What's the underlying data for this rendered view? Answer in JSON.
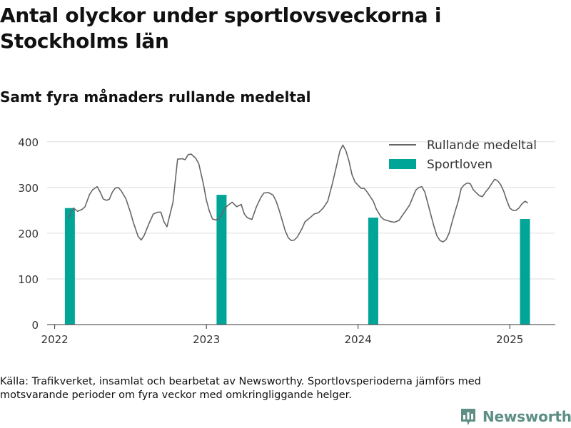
{
  "header": {
    "title": "Antal olyckor under sportlovsveckorna i Stockholms län",
    "subtitle": "Samt fyra månaders rullande medeltal"
  },
  "footer": {
    "source": "Källa: Trafikverket, insamlat och bearbetat av Newsworthy. Sportlovsperioderna jämförs med motsvarande perioder om fyra veckor med omkringliggande helger.",
    "brand": "Newsworthy"
  },
  "chart_data": {
    "type": "bar+line",
    "title": "Antal olyckor under sportlovsveckorna i Stockholms län",
    "subtitle": "Samt fyra månaders rullande medeltal",
    "xlabel": "",
    "ylabel": "",
    "xlim": [
      2021.95,
      2025.3
    ],
    "ylim": [
      0,
      420
    ],
    "x_ticks": [
      2022,
      2023,
      2024,
      2025
    ],
    "x_tick_labels": [
      "2022",
      "2023",
      "2024",
      "2025"
    ],
    "y_ticks": [
      0,
      100,
      200,
      300,
      400
    ],
    "y_tick_labels": [
      "0",
      "100",
      "200",
      "300",
      "400"
    ],
    "grid": "horizontal",
    "legend": {
      "position": "top-right",
      "entries": [
        {
          "name": "Rullande medeltal",
          "type": "line",
          "color": "#666666"
        },
        {
          "name": "Sportloven",
          "type": "bar",
          "color": "#00a598"
        }
      ]
    },
    "series": [
      {
        "name": "Sportloven",
        "type": "bar",
        "color": "#00a598",
        "x": [
          2022.1,
          2023.1,
          2024.1,
          2025.1
        ],
        "values": [
          255,
          284,
          234,
          231
        ]
      },
      {
        "name": "Rullande medeltal",
        "type": "line",
        "color": "#666666",
        "points": [
          [
            2022.09,
            232
          ],
          [
            2022.11,
            248
          ],
          [
            2022.125,
            255
          ],
          [
            2022.15,
            248
          ],
          [
            2022.18,
            252
          ],
          [
            2022.2,
            258
          ],
          [
            2022.23,
            285
          ],
          [
            2022.25,
            295
          ],
          [
            2022.28,
            302
          ],
          [
            2022.3,
            290
          ],
          [
            2022.32,
            275
          ],
          [
            2022.34,
            272
          ],
          [
            2022.36,
            274
          ],
          [
            2022.38,
            290
          ],
          [
            2022.4,
            299
          ],
          [
            2022.42,
            300
          ],
          [
            2022.44,
            292
          ],
          [
            2022.47,
            275
          ],
          [
            2022.5,
            245
          ],
          [
            2022.52,
            222
          ],
          [
            2022.55,
            193
          ],
          [
            2022.57,
            185
          ],
          [
            2022.59,
            195
          ],
          [
            2022.62,
            220
          ],
          [
            2022.65,
            242
          ],
          [
            2022.68,
            246
          ],
          [
            2022.7,
            246
          ],
          [
            2022.72,
            225
          ],
          [
            2022.74,
            214
          ],
          [
            2022.78,
            268
          ],
          [
            2022.81,
            362
          ],
          [
            2022.84,
            363
          ],
          [
            2022.86,
            361
          ],
          [
            2022.88,
            372
          ],
          [
            2022.9,
            373
          ],
          [
            2022.93,
            364
          ],
          [
            2022.95,
            352
          ],
          [
            2022.98,
            308
          ],
          [
            2023.0,
            272
          ],
          [
            2023.02,
            248
          ],
          [
            2023.04,
            231
          ],
          [
            2023.06,
            229
          ],
          [
            2023.08,
            231
          ],
          [
            2023.1,
            240
          ],
          [
            2023.12,
            255
          ],
          [
            2023.15,
            263
          ],
          [
            2023.17,
            268
          ],
          [
            2023.2,
            258
          ],
          [
            2023.23,
            263
          ],
          [
            2023.25,
            242
          ],
          [
            2023.27,
            234
          ],
          [
            2023.3,
            230
          ],
          [
            2023.33,
            258
          ],
          [
            2023.36,
            279
          ],
          [
            2023.38,
            288
          ],
          [
            2023.41,
            289
          ],
          [
            2023.44,
            283
          ],
          [
            2023.46,
            270
          ],
          [
            2023.48,
            250
          ],
          [
            2023.5,
            228
          ],
          [
            2023.52,
            205
          ],
          [
            2023.54,
            190
          ],
          [
            2023.56,
            184
          ],
          [
            2023.58,
            185
          ],
          [
            2023.6,
            192
          ],
          [
            2023.63,
            210
          ],
          [
            2023.65,
            225
          ],
          [
            2023.68,
            233
          ],
          [
            2023.71,
            242
          ],
          [
            2023.74,
            245
          ],
          [
            2023.77,
            255
          ],
          [
            2023.8,
            270
          ],
          [
            2023.83,
            308
          ],
          [
            2023.86,
            350
          ],
          [
            2023.88,
            380
          ],
          [
            2023.9,
            393
          ],
          [
            2023.92,
            380
          ],
          [
            2023.94,
            358
          ],
          [
            2023.96,
            328
          ],
          [
            2023.98,
            312
          ],
          [
            2024.0,
            305
          ],
          [
            2024.02,
            298
          ],
          [
            2024.04,
            298
          ],
          [
            2024.06,
            290
          ],
          [
            2024.08,
            280
          ],
          [
            2024.1,
            270
          ],
          [
            2024.12,
            253
          ],
          [
            2024.15,
            236
          ],
          [
            2024.17,
            230
          ],
          [
            2024.2,
            227
          ],
          [
            2024.22,
            225
          ],
          [
            2024.24,
            224
          ],
          [
            2024.27,
            228
          ],
          [
            2024.29,
            238
          ],
          [
            2024.32,
            252
          ],
          [
            2024.34,
            262
          ],
          [
            2024.36,
            278
          ],
          [
            2024.38,
            294
          ],
          [
            2024.4,
            300
          ],
          [
            2024.42,
            302
          ],
          [
            2024.44,
            290
          ],
          [
            2024.46,
            265
          ],
          [
            2024.48,
            240
          ],
          [
            2024.5,
            215
          ],
          [
            2024.52,
            194
          ],
          [
            2024.54,
            184
          ],
          [
            2024.56,
            181
          ],
          [
            2024.58,
            186
          ],
          [
            2024.6,
            200
          ],
          [
            2024.62,
            225
          ],
          [
            2024.64,
            248
          ],
          [
            2024.66,
            270
          ],
          [
            2024.68,
            298
          ],
          [
            2024.7,
            306
          ],
          [
            2024.72,
            310
          ],
          [
            2024.74,
            308
          ],
          [
            2024.76,
            295
          ],
          [
            2024.78,
            288
          ],
          [
            2024.8,
            282
          ],
          [
            2024.82,
            280
          ],
          [
            2024.84,
            290
          ],
          [
            2024.86,
            298
          ],
          [
            2024.88,
            308
          ],
          [
            2024.9,
            318
          ],
          [
            2024.92,
            315
          ],
          [
            2024.94,
            306
          ],
          [
            2024.96,
            292
          ],
          [
            2024.98,
            272
          ],
          [
            2025.0,
            255
          ],
          [
            2025.02,
            250
          ],
          [
            2025.04,
            250
          ],
          [
            2025.06,
            255
          ],
          [
            2025.08,
            264
          ],
          [
            2025.1,
            270
          ],
          [
            2025.12,
            266
          ]
        ]
      }
    ]
  }
}
